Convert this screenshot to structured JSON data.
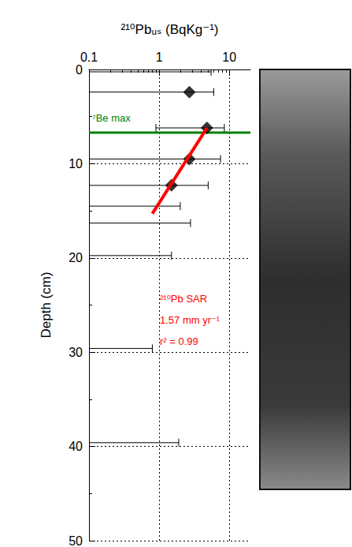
{
  "chart_data": {
    "type": "scatter",
    "x_label": "²¹⁰Pbᵤₛ (BqKg⁻¹)",
    "y_label": "Depth (cm)",
    "log": "x",
    "grid": true,
    "xlim": [
      0.1,
      20
    ],
    "xticks": [
      0.1,
      1,
      10
    ],
    "ylim": [
      0,
      50
    ],
    "yticks": [
      0,
      10,
      20,
      30,
      40,
      50
    ],
    "marker": "diamond",
    "color": "#000000",
    "depths": [
      0.25,
      2.4,
      6.2,
      9.5,
      12.3,
      14.5,
      16.3,
      19.75,
      29.6,
      39.6
    ],
    "values": [
      null,
      2.7,
      4.8,
      2.7,
      1.5,
      null,
      null,
      null,
      null,
      null
    ],
    "x_err_low": [
      null,
      null,
      0.9,
      null,
      null,
      null,
      null,
      null,
      null,
      null
    ],
    "x_err_high": [
      5.5,
      6.0,
      8.5,
      7.5,
      5.0,
      2.0,
      2.8,
      1.5,
      0.8,
      1.9
    ],
    "fit": {
      "name": "²¹⁰Pb SAR",
      "label": "1.57 mm yr⁻¹",
      "r2_label": "r² = 0.99",
      "x": [
        4.8,
        0.8
      ],
      "y": [
        6.2,
        15.3
      ],
      "color": "#ff0000"
    },
    "reference_line": {
      "label": "⁷Be max",
      "y": 6.7,
      "color": "#008000"
    }
  }
}
